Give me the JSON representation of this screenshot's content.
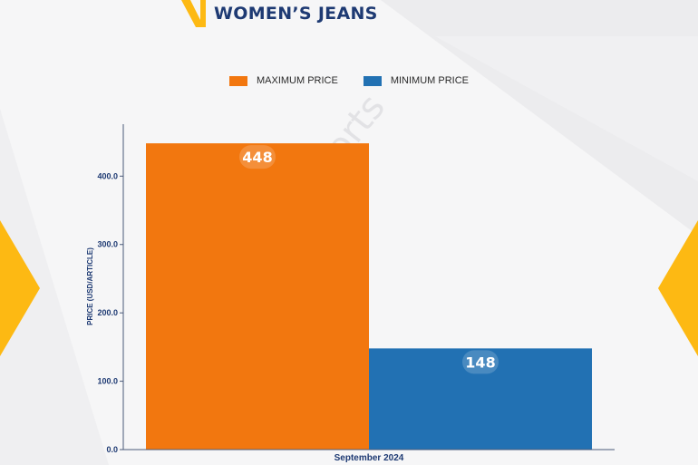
{
  "header": {
    "title": "WOMEN’S JEANS"
  },
  "watermark": "D&J Reports",
  "colors": {
    "max": "#f2770f",
    "min": "#2271b3",
    "title": "#1e3a73",
    "accent": "#fdb913"
  },
  "chart_data": {
    "type": "bar",
    "categories": [
      "September 2024"
    ],
    "series": [
      {
        "name": "MAXIMUM PRICE",
        "values": [
          448
        ]
      },
      {
        "name": "MINIMUM PRICE",
        "values": [
          148
        ]
      }
    ],
    "ylabel": "PRICE (USD/ARTICLE)",
    "xlabel": "",
    "ylim": [
      0,
      476
    ],
    "yticks": [
      "0.0",
      "100.0",
      "200.0",
      "300.0",
      "400.0"
    ],
    "ytick_values": [
      0,
      100,
      200,
      300,
      400
    ],
    "data_labels": [
      "448",
      "148"
    ],
    "legend_position": "top-center",
    "grid": false
  }
}
